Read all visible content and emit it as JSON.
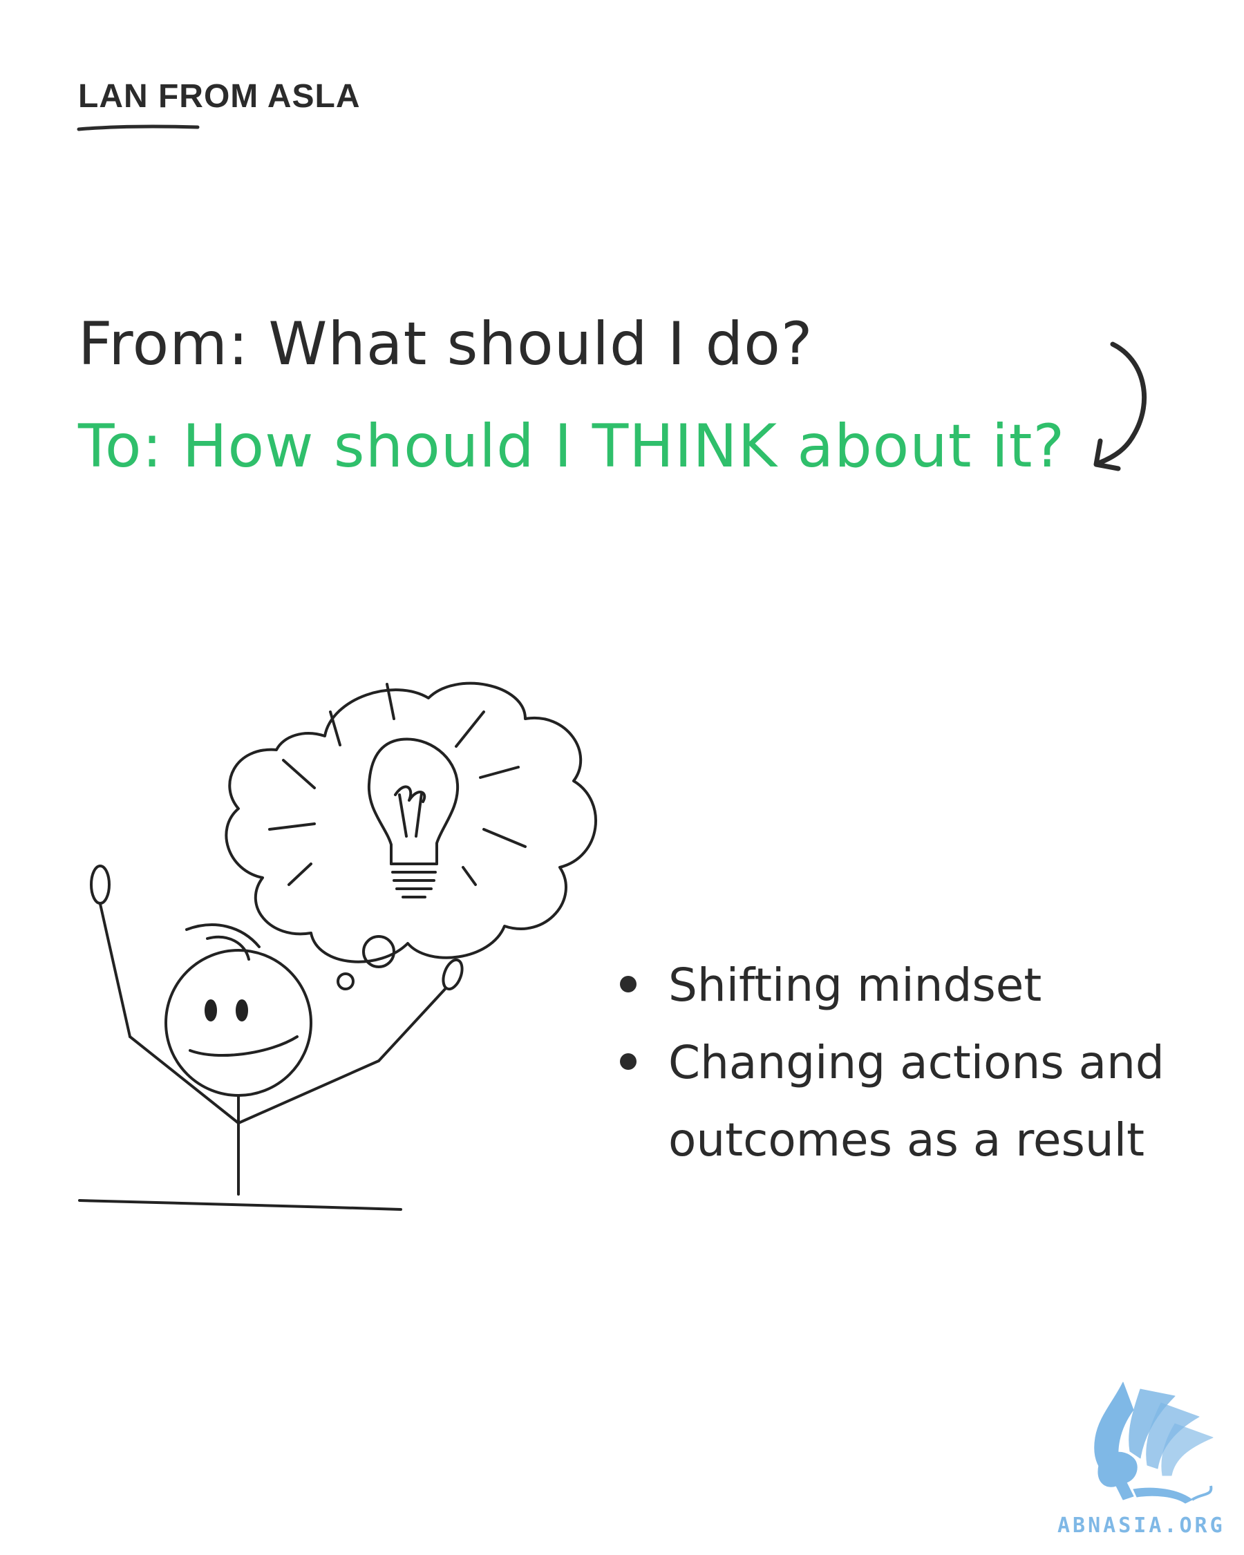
{
  "header": {
    "brand": "LAN FROM ASLA"
  },
  "headline": {
    "from_text": "From: What should I do?",
    "to_text": "To: How should I THINK about it?",
    "to_color": "#2fbf6b"
  },
  "bullets": [
    "Shifting mindset",
    "Changing actions and outcomes as a result"
  ],
  "illustration": {
    "icons": [
      "stick-figure-icon",
      "thought-bubble-icon",
      "lightbulb-icon",
      "curved-arrow-icon"
    ]
  },
  "footer": {
    "logo_text": "ABNASIA.ORG",
    "logo_color": "#7fb8e6"
  }
}
